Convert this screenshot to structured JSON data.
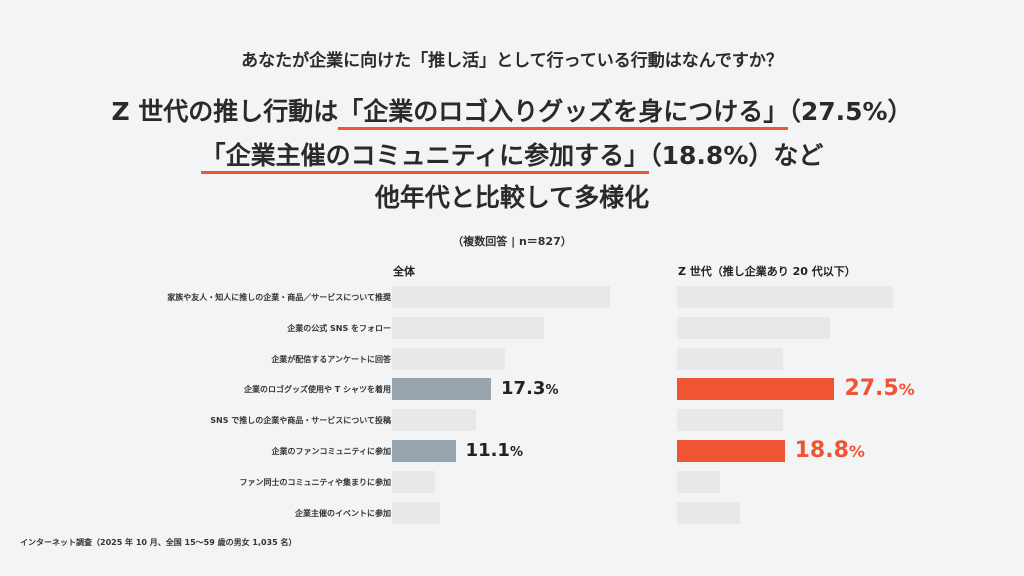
{
  "question": "あなたが企業に向けた「推し活」として行っている行動はなんですか？",
  "headline": {
    "line1_pre": "Z 世代の推し行動は",
    "line1_mark": "「企業のロゴ入りグッズを身につける」",
    "line1_post": "（27.5%）",
    "line2_mark": "「企業主催のコミュニティに参加する」",
    "line2_post": "（18.8%）など",
    "line3": "他年代と比較して多様化"
  },
  "note": "（複数回答 | n＝827）",
  "source": "インターネット調査（2025 年 10 月、全国 15〜59 歳の男女 1,035 名）",
  "colors": {
    "all_highlight": "#97a3ad",
    "z_highlight": "#ef5533",
    "neutral": "#e7e8ea"
  },
  "chart_data": [
    {
      "type": "bar",
      "orientation": "horizontal",
      "title": "全体",
      "categories": [
        "家族や友人・知人に推しの企業・商品／サービスについて推奨",
        "企業の公式 SNS をフォロー",
        "企業が配信するアンケートに回答",
        "企業のロゴグッズ使用や T シャツを着用",
        "SNS で推しの企業や商品・サービスについて投稿",
        "企業のファンコミュニティに参加",
        "ファン同士のコミュニティや集まりに参加",
        "企業主催のイベントに参加"
      ],
      "values": [
        38.0,
        26.5,
        19.8,
        17.3,
        14.7,
        11.1,
        7.5,
        8.3
      ],
      "labels": [
        null,
        null,
        null,
        {
          "num": "17.3",
          "unit": "%"
        },
        null,
        {
          "num": "11.1",
          "unit": "%"
        },
        null,
        null
      ],
      "highlight": [
        false,
        false,
        false,
        true,
        false,
        true,
        false,
        false
      ],
      "xlim": [
        0,
        40
      ]
    },
    {
      "type": "bar",
      "orientation": "horizontal",
      "title": "Z 世代（推し企業あり 20 代以下）",
      "categories": [
        "家族や友人・知人に推しの企業・商品／サービスについて推奨",
        "企業の公式 SNS をフォロー",
        "企業が配信するアンケートに回答",
        "企業のロゴグッズ使用や T シャツを着用",
        "SNS で推しの企業や商品・サービスについて投稿",
        "企業のファンコミュニティに参加",
        "ファン同士のコミュニティや集まりに参加",
        "企業主催のイベントに参加"
      ],
      "values": [
        37.8,
        26.8,
        18.5,
        27.5,
        18.5,
        18.8,
        7.5,
        11.0
      ],
      "labels": [
        null,
        null,
        null,
        {
          "num": "27.5",
          "unit": "%"
        },
        null,
        {
          "num": "18.8",
          "unit": "%"
        },
        null,
        null
      ],
      "highlight": [
        false,
        false,
        false,
        true,
        false,
        true,
        false,
        false
      ],
      "xlim": [
        0,
        40
      ]
    }
  ]
}
